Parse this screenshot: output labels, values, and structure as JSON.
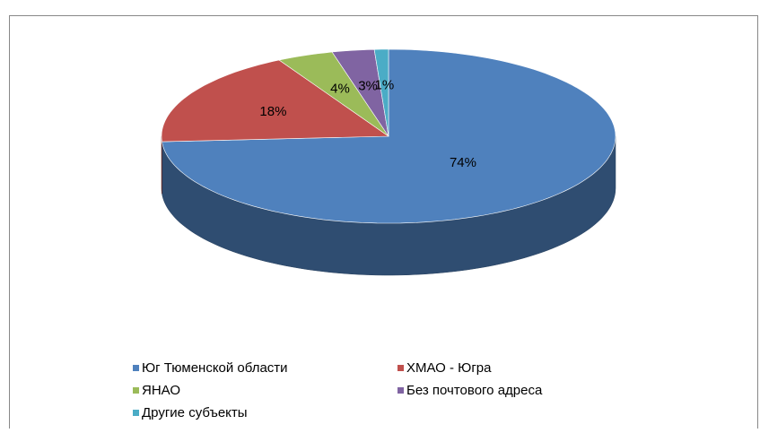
{
  "chart_data": {
    "type": "pie3d",
    "categories": [
      "Юг Тюменской области",
      "ХМАО  - Югра",
      "ЯНАО",
      "Без почтового адреса",
      "Другие субъекты"
    ],
    "values": [
      74,
      18,
      4,
      3,
      1
    ],
    "value_labels": [
      "74%",
      "18%",
      "4%",
      "3%",
      "1%"
    ],
    "colors": [
      "#4f81bd",
      "#c0504d",
      "#9bbb59",
      "#8064a2",
      "#4bacc6"
    ],
    "legend": "bottom"
  }
}
